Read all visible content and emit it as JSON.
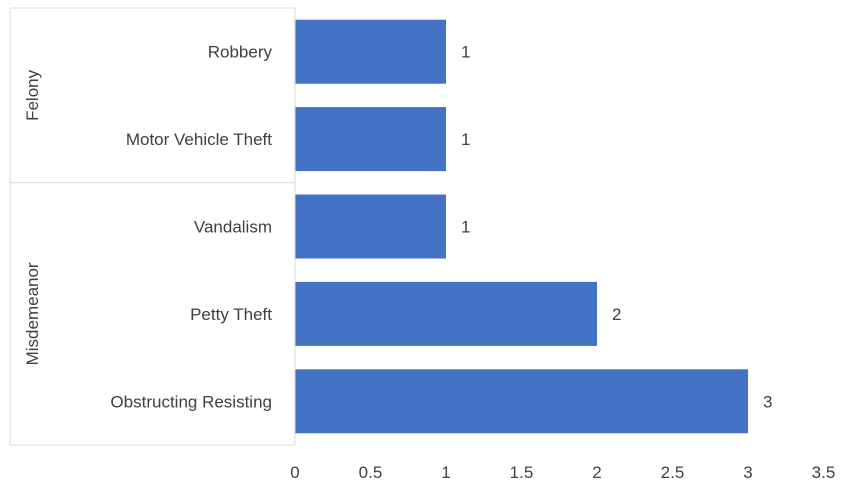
{
  "chart_data": {
    "type": "bar",
    "orientation": "horizontal",
    "groups": [
      {
        "label": "Felony",
        "categories": [
          "Robbery",
          "Motor Vehicle Theft"
        ]
      },
      {
        "label": "Misdemeanor",
        "categories": [
          "Vandalism",
          "Petty Theft",
          "Obstructing Resisting"
        ]
      }
    ],
    "categories": [
      "Robbery",
      "Motor Vehicle Theft",
      "Vandalism",
      "Petty Theft",
      "Obstructing Resisting"
    ],
    "values": [
      1,
      1,
      1,
      2,
      3
    ],
    "data_labels": [
      "1",
      "1",
      "1",
      "2",
      "3"
    ],
    "xlim": [
      0,
      3.5
    ],
    "x_ticks": [
      "0",
      "0.5",
      "1",
      "1.5",
      "2",
      "2.5",
      "3",
      "3.5"
    ],
    "title": "",
    "xlabel": "",
    "ylabel": "",
    "grid": false,
    "legend": "none",
    "bar_color": "#4472C4",
    "axis_color": "#D9D9D9",
    "text_color": "#404040"
  }
}
